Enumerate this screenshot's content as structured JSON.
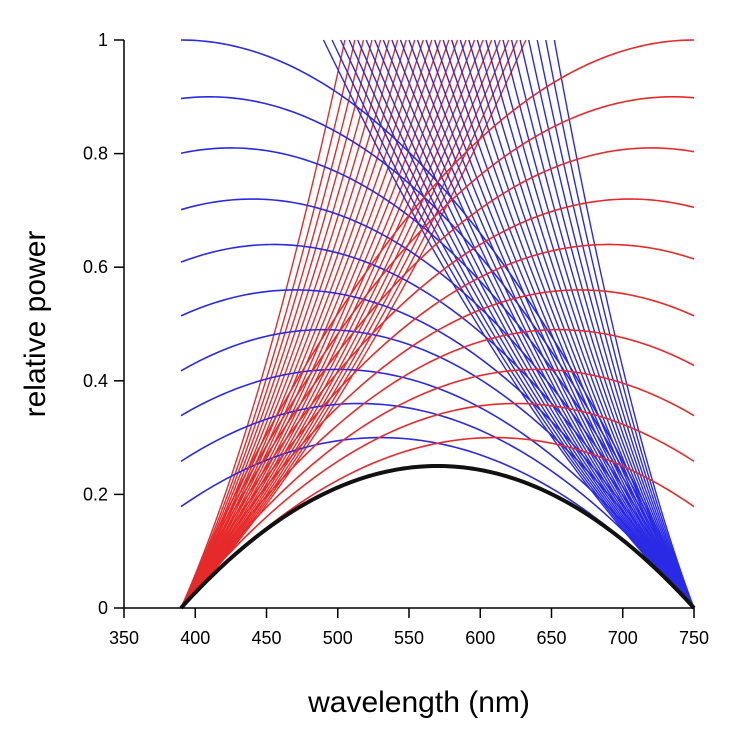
{
  "chart_data": {
    "type": "line",
    "xlabel": "wavelength (nm)",
    "ylabel": "relative power",
    "xlim": [
      350,
      750
    ],
    "ylim": [
      0,
      1
    ],
    "x_ticks": [
      "350",
      "400",
      "450",
      "500",
      "550",
      "600",
      "650",
      "700",
      "750"
    ],
    "y_ticks": [
      "0",
      "0.2",
      "0.4",
      "0.6",
      "0.8",
      "1"
    ],
    "grid": false,
    "legend": "none",
    "colors": {
      "blue_family": "#2a2ae6",
      "red_family": "#e62a2a",
      "base_curve": "#111111",
      "axis": "#000000"
    },
    "domain_nm": [
      390,
      750
    ],
    "base_curve": {
      "name": "",
      "peak_x": 570,
      "peak_y": 0.25
    },
    "blue_family": {
      "description_of_shape": "left-anchored curves",
      "series": [
        {
          "peak_y": 0.3,
          "peak_x": 530
        },
        {
          "peak_y": 0.36,
          "peak_x": 515
        },
        {
          "peak_y": 0.42,
          "peak_x": 500
        },
        {
          "peak_y": 0.49,
          "peak_x": 490
        },
        {
          "peak_y": 0.56,
          "peak_x": 470
        },
        {
          "peak_y": 0.64,
          "peak_x": 455
        },
        {
          "peak_y": 0.72,
          "peak_x": 440
        },
        {
          "peak_y": 0.81,
          "peak_x": 425
        },
        {
          "peak_y": 0.9,
          "peak_x": 410
        },
        {
          "peak_y": 1.0,
          "peak_x": 390
        }
      ]
    },
    "red_family": {
      "series": [
        {
          "peak_y": 0.3,
          "peak_x": 610
        },
        {
          "peak_y": 0.36,
          "peak_x": 625
        },
        {
          "peak_y": 0.42,
          "peak_x": 640
        },
        {
          "peak_y": 0.49,
          "peak_x": 655
        },
        {
          "peak_y": 0.56,
          "peak_x": 670
        },
        {
          "peak_y": 0.64,
          "peak_x": 690
        },
        {
          "peak_y": 0.72,
          "peak_x": 705
        },
        {
          "peak_y": 0.81,
          "peak_x": 720
        },
        {
          "peak_y": 0.9,
          "peak_x": 735
        },
        {
          "peak_y": 1.0,
          "peak_x": 750
        }
      ]
    },
    "red_fan": {
      "anchor": [
        390,
        0
      ],
      "top_x": [
        505,
        512,
        518,
        524,
        530,
        536,
        542,
        548,
        554,
        560,
        566,
        572,
        578,
        584,
        590,
        596,
        602,
        608,
        614,
        620,
        626,
        632
      ]
    },
    "blue_fan": {
      "anchor": [
        750,
        0
      ],
      "top_x": [
        490,
        496,
        502,
        508,
        514,
        520,
        526,
        532,
        538,
        544,
        550,
        556,
        562,
        568,
        574,
        580,
        586,
        592,
        598,
        604,
        610,
        616,
        622,
        628,
        634,
        640,
        646,
        652
      ]
    }
  }
}
